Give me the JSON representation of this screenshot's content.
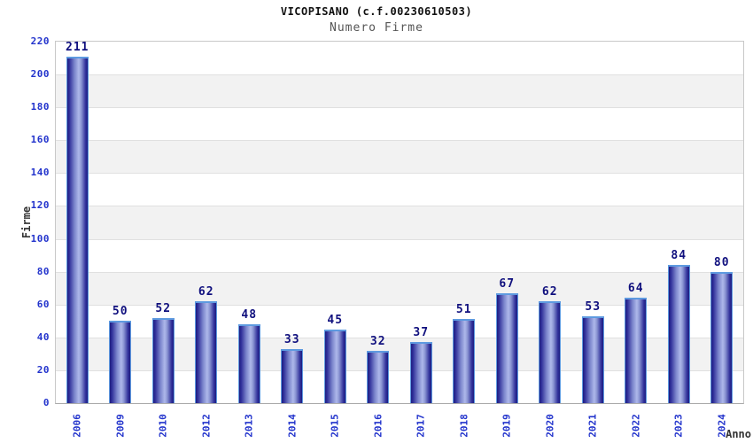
{
  "header": {
    "title": "VICOPISANO (c.f.00230610503)",
    "subtitle": "Numero Firme"
  },
  "chart_data": {
    "type": "bar",
    "title": "VICOPISANO (c.f.00230610503)",
    "subtitle": "Numero Firme",
    "xlabel": "Anno",
    "ylabel": "Firme",
    "categories": [
      "2006",
      "2009",
      "2010",
      "2012",
      "2013",
      "2014",
      "2015",
      "2016",
      "2017",
      "2018",
      "2019",
      "2020",
      "2021",
      "2022",
      "2023",
      "2024"
    ],
    "values": [
      211,
      50,
      52,
      62,
      48,
      33,
      45,
      32,
      37,
      51,
      67,
      62,
      53,
      64,
      84,
      80
    ],
    "ylim": [
      0,
      220
    ],
    "ytick_step": 20,
    "grid": "horizontal-bands-alternating",
    "legend": "none",
    "colors": {
      "title": "#111111",
      "subtitle": "#555555",
      "tick_label": "#2233cc",
      "value_label": "#10107e",
      "axis_label": "#333333",
      "bar_edge": "#1d1d80",
      "bar_center": "#aeb8ea",
      "bar_outline": "#5e9ae0",
      "band_gray": "#f2f2f2",
      "band_white": "#ffffff",
      "gridline": "#e0e0e0",
      "plot_border": "#c8c8c8"
    }
  }
}
